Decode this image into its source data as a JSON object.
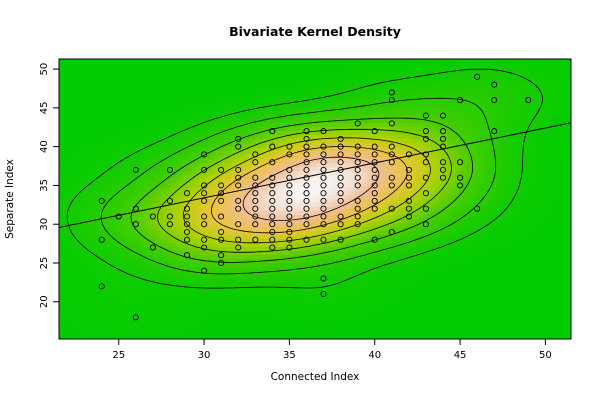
{
  "chart_data": {
    "type": "scatter",
    "title": "Bivariate Kernel Density",
    "xlabel": "Connected Index",
    "ylabel": "Separate Index",
    "xlim": [
      21.5,
      51.5
    ],
    "ylim": [
      15.2,
      51.3
    ],
    "xticks": [
      25,
      30,
      35,
      40,
      45,
      50
    ],
    "yticks": [
      20,
      25,
      30,
      35,
      40,
      45,
      50
    ],
    "grid": false,
    "legend": "none",
    "background_color": "#00cc00",
    "peak_color": "#f5f5f5",
    "density_center": [
      36.5,
      37.0
    ],
    "regression_line": {
      "intercept": 19.9,
      "slope": 0.45
    },
    "points": [
      [
        24,
        33
      ],
      [
        24,
        28
      ],
      [
        24,
        22
      ],
      [
        25,
        31
      ],
      [
        26,
        37
      ],
      [
        26,
        32
      ],
      [
        26,
        30
      ],
      [
        26,
        18
      ],
      [
        27,
        31
      ],
      [
        27,
        27
      ],
      [
        28,
        37
      ],
      [
        28,
        33
      ],
      [
        28,
        31
      ],
      [
        28,
        30
      ],
      [
        29,
        34
      ],
      [
        29,
        32
      ],
      [
        29,
        31
      ],
      [
        29,
        30
      ],
      [
        29,
        29
      ],
      [
        29,
        28
      ],
      [
        29,
        26
      ],
      [
        30,
        39
      ],
      [
        30,
        37
      ],
      [
        30,
        35
      ],
      [
        30,
        34
      ],
      [
        30,
        33
      ],
      [
        30,
        31
      ],
      [
        30,
        30
      ],
      [
        30,
        28
      ],
      [
        30,
        27
      ],
      [
        30,
        24
      ],
      [
        31,
        37
      ],
      [
        31,
        35
      ],
      [
        31,
        34
      ],
      [
        31,
        33
      ],
      [
        31,
        31
      ],
      [
        31,
        29
      ],
      [
        31,
        28
      ],
      [
        31,
        26
      ],
      [
        31,
        25
      ],
      [
        32,
        41
      ],
      [
        32,
        40
      ],
      [
        32,
        37
      ],
      [
        32,
        36
      ],
      [
        32,
        35
      ],
      [
        32,
        33
      ],
      [
        32,
        32
      ],
      [
        32,
        30
      ],
      [
        32,
        28
      ],
      [
        32,
        27
      ],
      [
        33,
        39
      ],
      [
        33,
        38
      ],
      [
        33,
        36
      ],
      [
        33,
        35
      ],
      [
        33,
        34
      ],
      [
        33,
        33
      ],
      [
        33,
        32
      ],
      [
        33,
        31
      ],
      [
        33,
        30
      ],
      [
        33,
        28
      ],
      [
        34,
        42
      ],
      [
        34,
        40
      ],
      [
        34,
        38
      ],
      [
        34,
        36
      ],
      [
        34,
        35
      ],
      [
        34,
        34
      ],
      [
        34,
        33
      ],
      [
        34,
        32
      ],
      [
        34,
        31
      ],
      [
        34,
        30
      ],
      [
        34,
        29
      ],
      [
        34,
        28
      ],
      [
        34,
        27
      ],
      [
        35,
        40
      ],
      [
        35,
        39
      ],
      [
        35,
        37
      ],
      [
        35,
        36
      ],
      [
        35,
        35
      ],
      [
        35,
        34
      ],
      [
        35,
        33
      ],
      [
        35,
        32
      ],
      [
        35,
        31
      ],
      [
        35,
        30
      ],
      [
        35,
        29
      ],
      [
        35,
        28
      ],
      [
        35,
        27
      ],
      [
        36,
        42
      ],
      [
        36,
        41
      ],
      [
        36,
        40
      ],
      [
        36,
        39
      ],
      [
        36,
        38
      ],
      [
        36,
        37
      ],
      [
        36,
        36
      ],
      [
        36,
        35
      ],
      [
        36,
        34
      ],
      [
        36,
        33
      ],
      [
        36,
        32
      ],
      [
        36,
        31
      ],
      [
        36,
        30
      ],
      [
        36,
        28
      ],
      [
        37,
        42
      ],
      [
        37,
        40
      ],
      [
        37,
        39
      ],
      [
        37,
        38
      ],
      [
        37,
        37
      ],
      [
        37,
        36
      ],
      [
        37,
        35
      ],
      [
        37,
        34
      ],
      [
        37,
        33
      ],
      [
        37,
        32
      ],
      [
        37,
        31
      ],
      [
        37,
        30
      ],
      [
        37,
        28
      ],
      [
        37,
        23
      ],
      [
        37,
        21
      ],
      [
        38,
        41
      ],
      [
        38,
        40
      ],
      [
        38,
        39
      ],
      [
        38,
        38
      ],
      [
        38,
        37
      ],
      [
        38,
        36
      ],
      [
        38,
        35
      ],
      [
        38,
        34
      ],
      [
        38,
        33
      ],
      [
        38,
        31
      ],
      [
        38,
        30
      ],
      [
        38,
        28
      ],
      [
        39,
        43
      ],
      [
        39,
        40
      ],
      [
        39,
        39
      ],
      [
        39,
        38
      ],
      [
        39,
        37
      ],
      [
        39,
        36
      ],
      [
        39,
        35
      ],
      [
        39,
        33
      ],
      [
        39,
        32
      ],
      [
        39,
        31
      ],
      [
        39,
        30
      ],
      [
        40,
        42
      ],
      [
        40,
        40
      ],
      [
        40,
        39
      ],
      [
        40,
        38
      ],
      [
        40,
        37
      ],
      [
        40,
        36
      ],
      [
        40,
        35
      ],
      [
        40,
        34
      ],
      [
        40,
        33
      ],
      [
        40,
        32
      ],
      [
        40,
        28
      ],
      [
        41,
        47
      ],
      [
        41,
        46
      ],
      [
        41,
        43
      ],
      [
        41,
        40
      ],
      [
        41,
        39
      ],
      [
        41,
        38
      ],
      [
        41,
        36
      ],
      [
        41,
        35
      ],
      [
        41,
        32
      ],
      [
        41,
        29
      ],
      [
        42,
        39
      ],
      [
        42,
        37
      ],
      [
        42,
        36
      ],
      [
        42,
        35
      ],
      [
        42,
        33
      ],
      [
        42,
        32
      ],
      [
        42,
        31
      ],
      [
        43,
        44
      ],
      [
        43,
        42
      ],
      [
        43,
        41
      ],
      [
        43,
        39
      ],
      [
        43,
        38
      ],
      [
        43,
        36
      ],
      [
        43,
        34
      ],
      [
        43,
        32
      ],
      [
        43,
        30
      ],
      [
        44,
        44
      ],
      [
        44,
        42
      ],
      [
        44,
        41
      ],
      [
        44,
        40
      ],
      [
        44,
        38
      ],
      [
        44,
        37
      ],
      [
        44,
        36
      ],
      [
        45,
        46
      ],
      [
        45,
        38
      ],
      [
        45,
        36
      ],
      [
        45,
        35
      ],
      [
        46,
        49
      ],
      [
        46,
        32
      ],
      [
        47,
        48
      ],
      [
        47,
        46
      ],
      [
        47,
        42
      ],
      [
        49,
        46
      ]
    ]
  }
}
